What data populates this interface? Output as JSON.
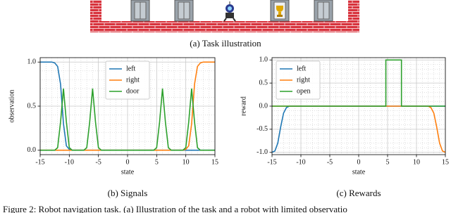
{
  "illustration": {
    "caption": "(a) Task illustration"
  },
  "figure_caption": "Figure 2: Robot navigation task. (a) Illustration of the task and a robot with limited observatio",
  "chart_data": [
    {
      "type": "line",
      "caption": "(b) Signals",
      "x_label": "state",
      "y_label": "observation",
      "xlim": [
        -15,
        15
      ],
      "xticks": [
        -15,
        -10,
        -5,
        0,
        5,
        10,
        15
      ],
      "ylim": [
        -0.05,
        1.05
      ],
      "yticks": [
        {
          "value": 0,
          "label": "0.0"
        },
        {
          "value": 0.5,
          "label": "0.5"
        },
        {
          "value": 1,
          "label": "1.0"
        }
      ],
      "grid": true,
      "minor_grid": true,
      "legend": "upper center",
      "x": [
        -15,
        -14.5,
        -14,
        -13.5,
        -13,
        -12.5,
        -12,
        -11.5,
        -11,
        -10.5,
        -10,
        -9.5,
        -9,
        -8.5,
        -8,
        -7.5,
        -7,
        -6.5,
        -6,
        -5.5,
        -5,
        -4.5,
        -4,
        -3.5,
        -3,
        -2.5,
        -2,
        -1.5,
        -1,
        -0.5,
        0,
        0.5,
        1,
        1.5,
        2,
        2.5,
        3,
        3.5,
        4,
        4.5,
        5,
        5.5,
        6,
        6.5,
        7,
        7.5,
        8,
        8.5,
        9,
        9.5,
        10,
        10.5,
        11,
        11.5,
        12,
        12.5,
        13,
        13.5,
        14,
        14.5,
        15
      ],
      "series": [
        {
          "name": "left",
          "color": "#1f77b4",
          "values": [
            1,
            1,
            1,
            1,
            1,
            0.99,
            0.95,
            0.75,
            0.3,
            0.05,
            0.01,
            0,
            0,
            0,
            0,
            0,
            0,
            0,
            0,
            0,
            0,
            0,
            0,
            0,
            0,
            0,
            0,
            0,
            0,
            0,
            0,
            0,
            0,
            0,
            0,
            0,
            0,
            0,
            0,
            0,
            0,
            0,
            0,
            0,
            0,
            0,
            0,
            0,
            0,
            0,
            0,
            0,
            0,
            0,
            0,
            0,
            0,
            0,
            0,
            0,
            0
          ]
        },
        {
          "name": "right",
          "color": "#ff7f0e",
          "values": [
            0,
            0,
            0,
            0,
            0,
            0,
            0,
            0,
            0,
            0,
            0,
            0,
            0,
            0,
            0,
            0,
            0,
            0,
            0,
            0,
            0,
            0,
            0,
            0,
            0,
            0,
            0,
            0,
            0,
            0,
            0,
            0,
            0,
            0,
            0,
            0,
            0,
            0,
            0,
            0,
            0,
            0,
            0,
            0,
            0,
            0,
            0,
            0,
            0,
            0,
            0.01,
            0.05,
            0.3,
            0.75,
            0.95,
            0.99,
            1,
            1,
            1,
            1,
            1
          ]
        },
        {
          "name": "door",
          "color": "#2ca02c",
          "values": [
            0,
            0,
            0,
            0,
            0,
            0,
            0.03,
            0.32,
            0.7,
            0.32,
            0.03,
            0,
            0,
            0,
            0,
            0,
            0.03,
            0.32,
            0.7,
            0.32,
            0.03,
            0,
            0,
            0,
            0,
            0,
            0,
            0,
            0,
            0,
            0,
            0,
            0,
            0,
            0,
            0,
            0,
            0,
            0,
            0,
            0.03,
            0.32,
            0.7,
            0.32,
            0.03,
            0,
            0,
            0,
            0,
            0,
            0.03,
            0.32,
            0.7,
            0.32,
            0.03,
            0,
            0,
            0,
            0,
            0,
            0
          ]
        }
      ]
    },
    {
      "type": "line",
      "caption": "(c) Rewards",
      "x_label": "state",
      "y_label": "reward",
      "xlim": [
        -15,
        15
      ],
      "xticks": [
        -15,
        -10,
        -5,
        0,
        5,
        10,
        15
      ],
      "ylim": [
        -1.05,
        1.05
      ],
      "yticks": [
        {
          "value": -1,
          "label": "-1.0"
        },
        {
          "value": -0.5,
          "label": "-0.5"
        },
        {
          "value": 0,
          "label": "0.0"
        },
        {
          "value": 0.5,
          "label": "0.5"
        },
        {
          "value": 1,
          "label": "1.0"
        }
      ],
      "grid": true,
      "minor_grid": true,
      "legend": "upper left",
      "series": [
        {
          "name": "left",
          "color": "#1f77b4",
          "x": [
            -15,
            -14.5,
            -14,
            -13.5,
            -13,
            -12.5,
            -12,
            15
          ],
          "values": [
            -1,
            -0.97,
            -0.8,
            -0.45,
            -0.15,
            -0.03,
            0,
            0
          ]
        },
        {
          "name": "right",
          "color": "#ff7f0e",
          "x": [
            -15,
            12,
            12.5,
            13,
            13.5,
            14,
            14.5,
            15
          ],
          "values": [
            0,
            0,
            -0.03,
            -0.15,
            -0.45,
            -0.8,
            -0.97,
            -1
          ]
        },
        {
          "name": "open",
          "color": "#2ca02c",
          "x": [
            -15,
            4.7,
            4.7,
            7.4,
            7.4,
            15
          ],
          "values": [
            0,
            0,
            1,
            1,
            0,
            0
          ]
        }
      ]
    }
  ]
}
